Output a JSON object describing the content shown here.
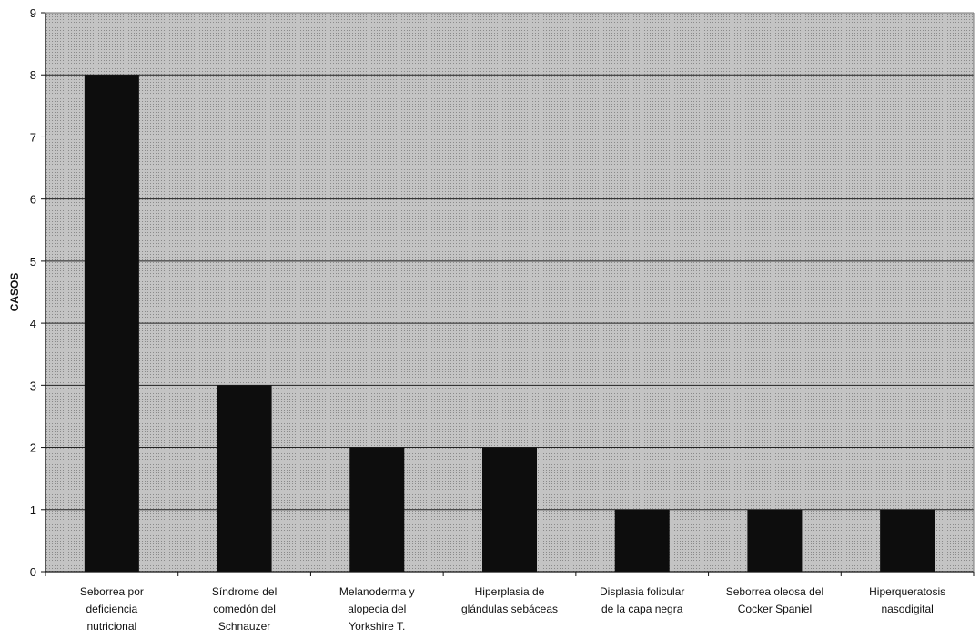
{
  "chart_data": {
    "type": "bar",
    "title": "",
    "xlabel": "",
    "ylabel": "CASOS",
    "ylim": [
      0,
      9
    ],
    "yticks": [
      "0",
      "1",
      "2",
      "3",
      "4",
      "5",
      "6",
      "7",
      "8",
      "9"
    ],
    "grid": true,
    "legend": "none",
    "categories": [
      [
        "Seborrea por",
        "deficiencia",
        "nutricional"
      ],
      [
        "Síndrome del",
        "comedón del",
        "Schnauzer"
      ],
      [
        "Melanoderma y",
        "alopecia del",
        "Yorkshire T."
      ],
      [
        "Hiperplasia de",
        "glándulas sebáceas"
      ],
      [
        "Displasia folicular",
        "de la capa negra"
      ],
      [
        "Seborrea oleosa del",
        "Cocker Spaniel"
      ],
      [
        "Hiperqueratosis",
        "nasodigital"
      ]
    ],
    "values": [
      8,
      3,
      2,
      2,
      1,
      1,
      1
    ],
    "colors": {
      "bar": "#0d0d0d",
      "plot_bg": "#b9b9b9",
      "gridline": "#222222"
    }
  }
}
